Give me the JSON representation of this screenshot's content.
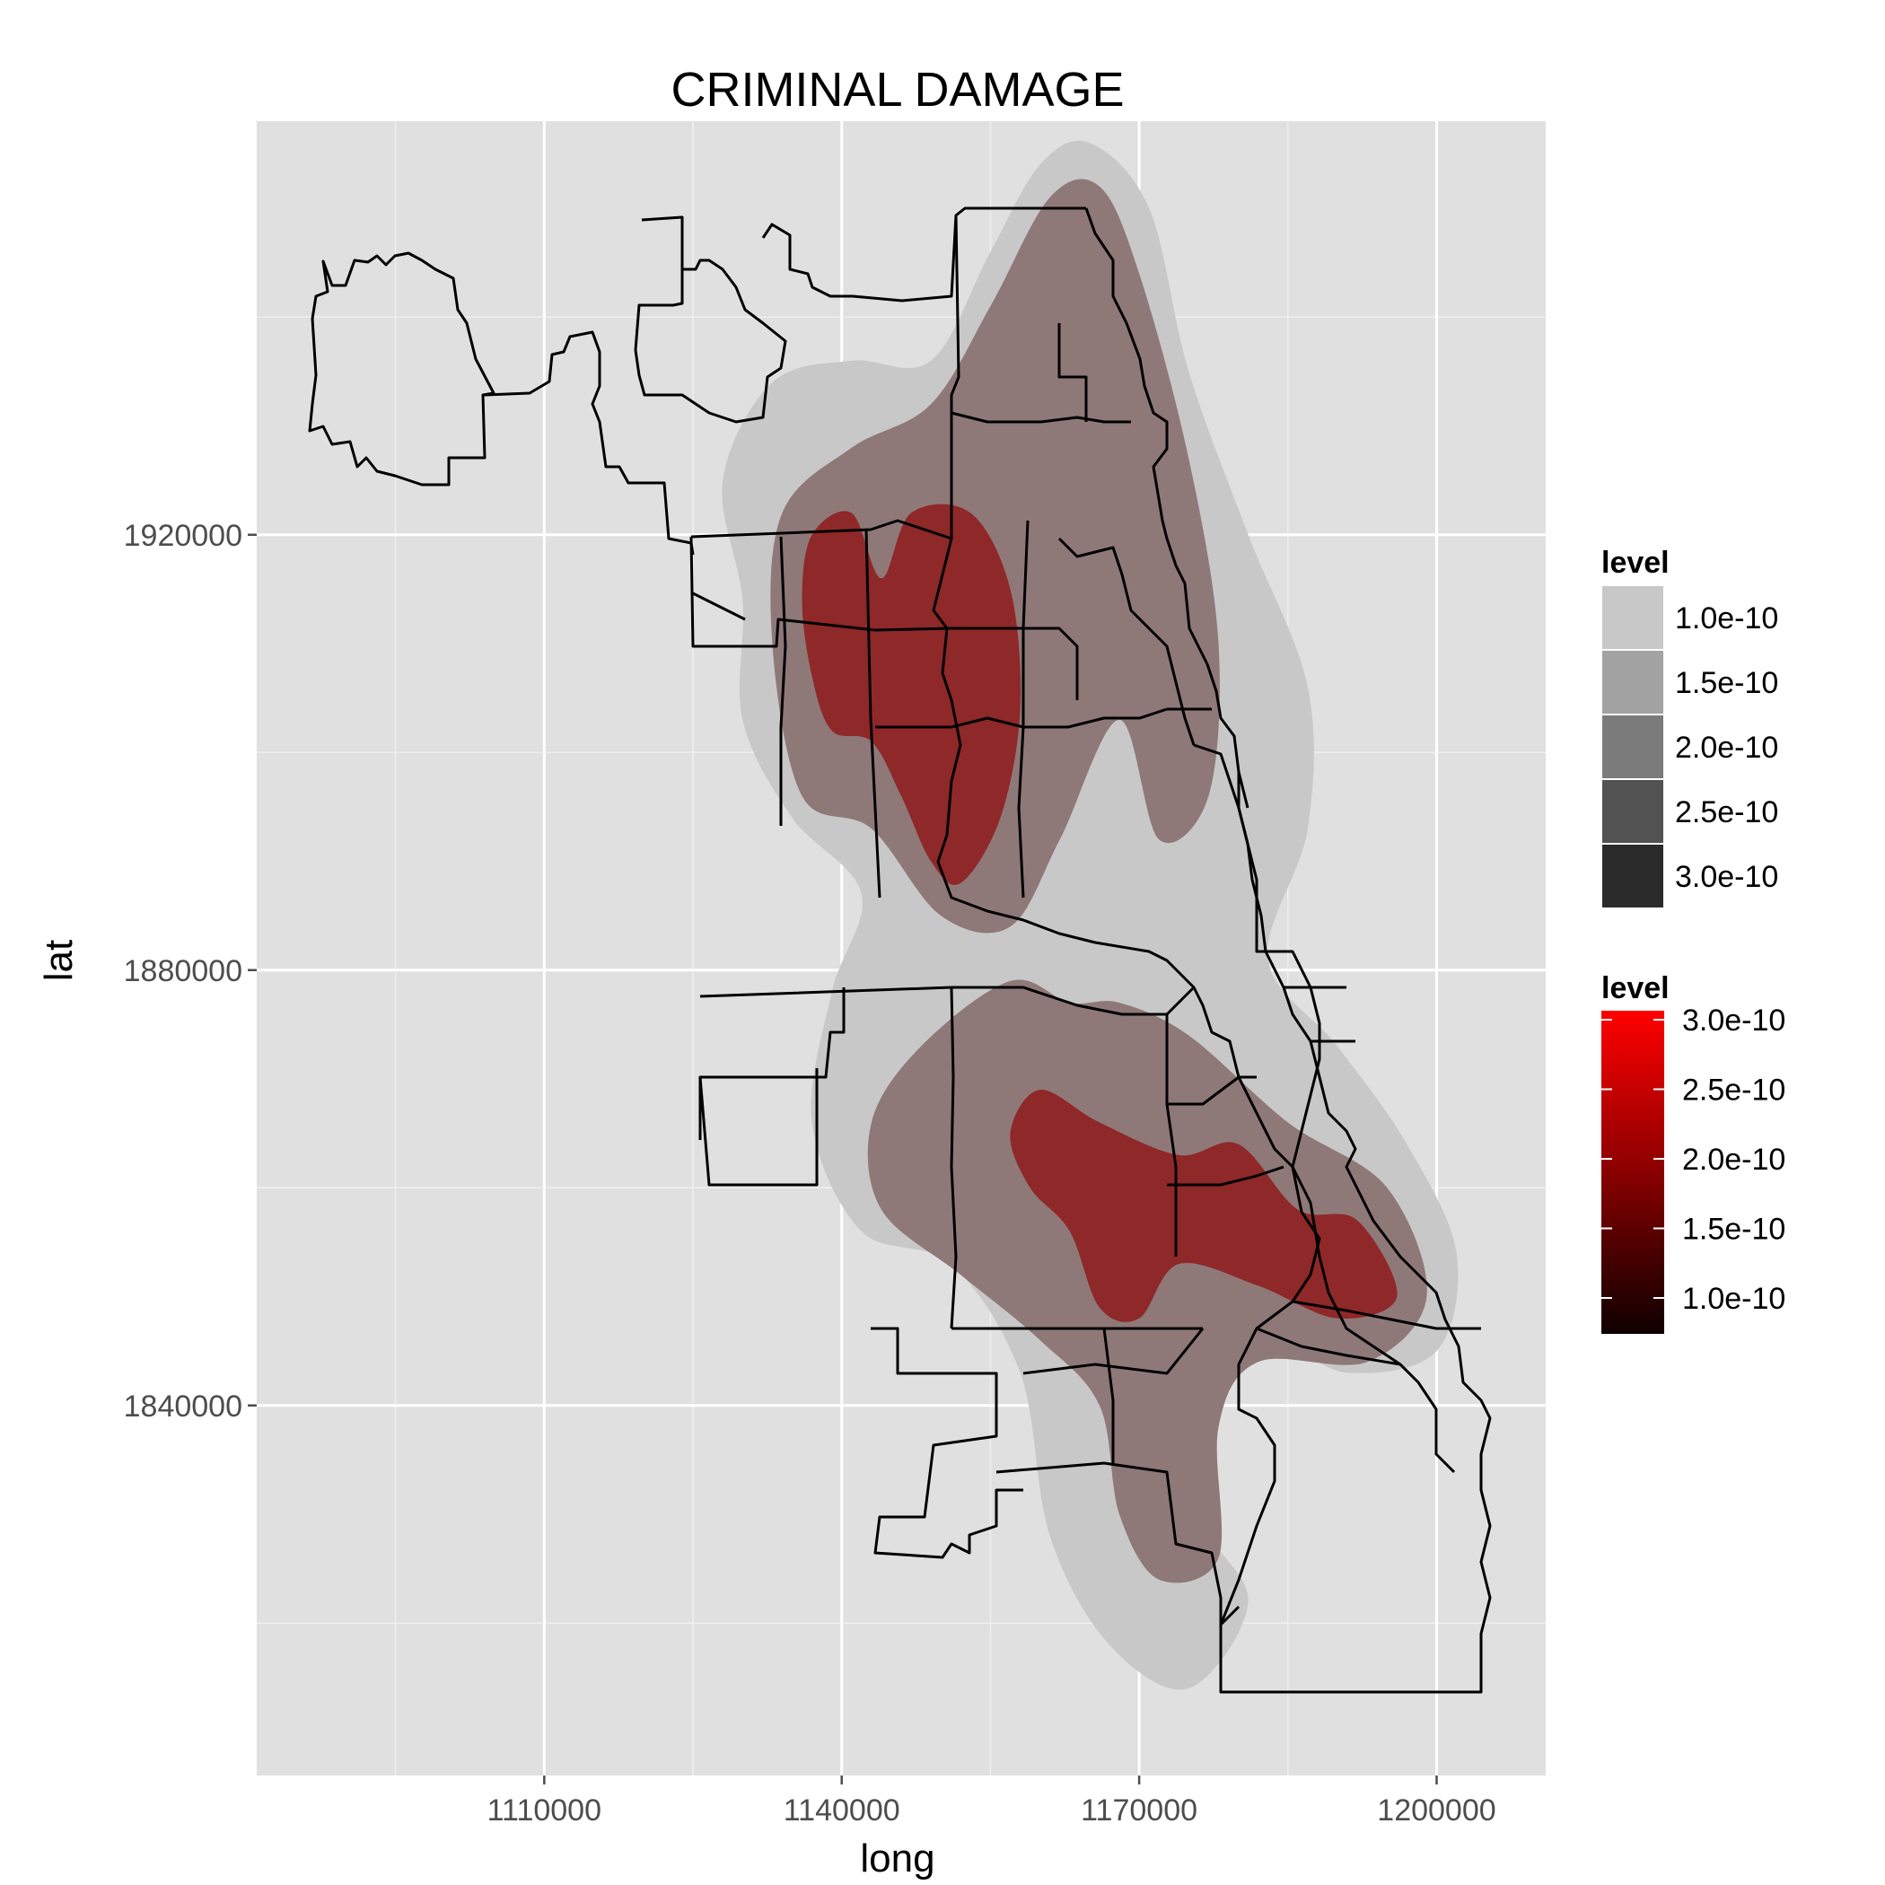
{
  "chart_data": {
    "type": "map-density",
    "title": "CRIMINAL DAMAGE",
    "xlabel": "long",
    "ylabel": "lat",
    "xlim": [
      1081000,
      1211000
    ],
    "ylim": [
      1806000,
      1958000
    ],
    "x_ticks": [
      1110000,
      1140000,
      1170000,
      1200000
    ],
    "x_tick_labels": [
      "1110000",
      "1140000",
      "1170000",
      "1200000"
    ],
    "y_ticks": [
      1920000,
      1880000,
      1840000
    ],
    "y_tick_labels": [
      "1920000",
      "1880000",
      "1840000"
    ],
    "grid": true,
    "legends": [
      {
        "title": "level",
        "kind": "fill",
        "entries": [
          {
            "label": "1.0e-10",
            "color": "#c8c8c8"
          },
          {
            "label": "1.5e-10",
            "color": "#a3a3a3"
          },
          {
            "label": "2.0e-10",
            "color": "#7b7b7b"
          },
          {
            "label": "2.5e-10",
            "color": "#525252"
          },
          {
            "label": "3.0e-10",
            "color": "#2b2b2b"
          }
        ]
      },
      {
        "title": "level",
        "kind": "colourbar",
        "labels": [
          "3.0e-10",
          "2.5e-10",
          "2.0e-10",
          "1.5e-10",
          "1.0e-10"
        ],
        "gradient": [
          "#ff0000",
          "#c40000",
          "#8a0000",
          "#4a0000",
          "#100000"
        ]
      }
    ],
    "density_levels": [
      {
        "level": 1e-10,
        "fill": "#c8c8c8",
        "regions": [
          [
            [
              1160000,
              1954000
            ],
            [
              1165000,
              1956000
            ],
            [
              1171000,
              1950000
            ],
            [
              1175000,
              1935000
            ],
            [
              1181000,
              1920000
            ],
            [
              1187000,
              1906000
            ],
            [
              1187000,
              1893000
            ],
            [
              1183000,
              1881000
            ],
            [
              1190000,
              1873000
            ],
            [
              1197000,
              1864000
            ],
            [
              1202000,
              1854000
            ],
            [
              1200000,
              1845000
            ],
            [
              1191000,
              1843000
            ],
            [
              1183000,
              1846000
            ],
            [
              1175000,
              1842000
            ],
            [
              1176000,
              1830000
            ],
            [
              1181000,
              1822000
            ],
            [
              1175000,
              1814000
            ],
            [
              1167000,
              1818000
            ],
            [
              1161000,
              1828000
            ],
            [
              1158000,
              1843000
            ],
            [
              1151000,
              1853000
            ],
            [
              1142000,
              1856000
            ],
            [
              1137000,
              1866000
            ],
            [
              1139000,
              1878000
            ],
            [
              1142000,
              1887000
            ],
            [
              1135000,
              1894000
            ],
            [
              1130000,
              1903000
            ],
            [
              1130000,
              1914000
            ],
            [
              1128000,
              1925000
            ],
            [
              1133000,
              1934000
            ],
            [
              1141000,
              1936000
            ],
            [
              1149000,
              1936000
            ],
            [
              1155000,
              1946000
            ]
          ]
        ]
      },
      {
        "level": 1.5e-10,
        "fill": "#8f7878",
        "regions": [
          [
            [
              1161000,
              1951000
            ],
            [
              1166000,
              1952000
            ],
            [
              1170000,
              1944000
            ],
            [
              1175000,
              1927000
            ],
            [
              1178000,
              1910000
            ],
            [
              1177000,
              1896000
            ],
            [
              1172000,
              1892000
            ],
            [
              1168000,
              1903000
            ],
            [
              1162000,
              1892000
            ],
            [
              1157000,
              1884000
            ],
            [
              1150000,
              1885000
            ],
            [
              1143000,
              1893000
            ],
            [
              1136000,
              1896000
            ],
            [
              1133000,
              1910000
            ],
            [
              1134000,
              1922000
            ],
            [
              1141000,
              1928000
            ],
            [
              1149000,
              1932000
            ],
            [
              1155000,
              1941000
            ]
          ],
          [
            [
              1157000,
              1879000
            ],
            [
              1163000,
              1877000
            ],
            [
              1168000,
              1877000
            ],
            [
              1175000,
              1874000
            ],
            [
              1185000,
              1866000
            ],
            [
              1195000,
              1860000
            ],
            [
              1199000,
              1850000
            ],
            [
              1193000,
              1844000
            ],
            [
              1182000,
              1844000
            ],
            [
              1178000,
              1838000
            ],
            [
              1178000,
              1826000
            ],
            [
              1172000,
              1824000
            ],
            [
              1168000,
              1830000
            ],
            [
              1166000,
              1840000
            ],
            [
              1160000,
              1846000
            ],
            [
              1152000,
              1852000
            ],
            [
              1144000,
              1858000
            ],
            [
              1143000,
              1866000
            ],
            [
              1148000,
              1873000
            ]
          ]
        ]
      },
      {
        "level": 2e-10,
        "fill": "#8f2828",
        "regions": [
          [
            [
              1137000,
              1920000
            ],
            [
              1141000,
              1922000
            ],
            [
              1144000,
              1916000
            ],
            [
              1147000,
              1922000
            ],
            [
              1153000,
              1922000
            ],
            [
              1157000,
              1915000
            ],
            [
              1158000,
              1904000
            ],
            [
              1156000,
              1894000
            ],
            [
              1152000,
              1888000
            ],
            [
              1149000,
              1890000
            ],
            [
              1146000,
              1896000
            ],
            [
              1143000,
              1901000
            ],
            [
              1139000,
              1902000
            ],
            [
              1137000,
              1907000
            ],
            [
              1136000,
              1914000
            ]
          ],
          [
            [
              1160000,
              1869000
            ],
            [
              1166000,
              1866000
            ],
            [
              1174000,
              1863000
            ],
            [
              1180000,
              1864000
            ],
            [
              1186000,
              1858000
            ],
            [
              1192000,
              1857000
            ],
            [
              1196000,
              1850000
            ],
            [
              1190000,
              1848000
            ],
            [
              1182000,
              1851000
            ],
            [
              1174000,
              1853000
            ],
            [
              1170000,
              1848000
            ],
            [
              1166000,
              1849000
            ],
            [
              1163000,
              1856000
            ],
            [
              1159000,
              1860000
            ],
            [
              1157000,
              1865000
            ]
          ]
        ]
      }
    ]
  }
}
